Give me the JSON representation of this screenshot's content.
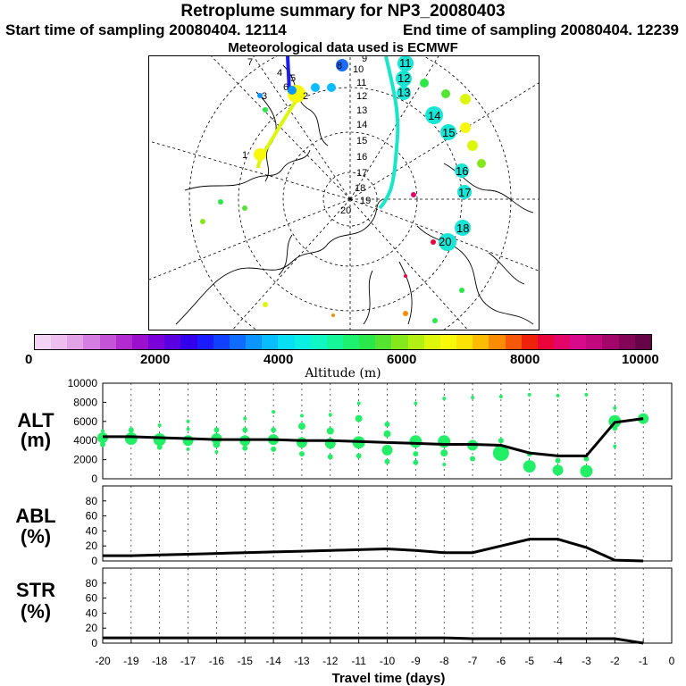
{
  "header": {
    "title": "Retroplume summary for NP3_20080403",
    "start": "Start time of sampling 20080404. 12114",
    "end": "End time of sampling 20080404. 12239",
    "met": "Meteorological data used is ECMWF"
  },
  "map": {
    "day_labels": [
      "1",
      "2",
      "3",
      "4",
      "5",
      "6",
      "7",
      "8",
      "9",
      "10",
      "11",
      "12",
      "13",
      "14",
      "15",
      "16",
      "17",
      "18",
      "19",
      "20"
    ],
    "center_labels": [
      "9",
      "10",
      "11",
      "12",
      "13",
      "14",
      "15",
      "16",
      "17",
      "18",
      "19",
      "20"
    ]
  },
  "colorbar": {
    "colors": [
      "#f3d4f3",
      "#eebfee",
      "#e2a3e6",
      "#d37ee0",
      "#c453d8",
      "#b12bd0",
      "#9a10cc",
      "#7c00d8",
      "#5a00e0",
      "#3300ee",
      "#1b1bff",
      "#1140ff",
      "#0f6cff",
      "#0c95ff",
      "#09bdfe",
      "#08def4",
      "#0befe2",
      "#11f7c4",
      "#17f59a",
      "#1ef070",
      "#2be84a",
      "#55e430",
      "#85e81c",
      "#b3ef12",
      "#dcf70b",
      "#f8f908",
      "#fde205",
      "#fcbb04",
      "#fa8c05",
      "#f45808",
      "#ee220a",
      "#e9053a",
      "#e3056a",
      "#d80a8c",
      "#c2087d",
      "#a3066b",
      "#830558",
      "#650447"
    ],
    "tick_labels": [
      "0",
      "2000",
      "4000",
      "6000",
      "8000",
      "10000"
    ],
    "title": "Altitude (m)"
  },
  "chart_data": [
    {
      "type": "line",
      "panel": "ALT",
      "ylabel_lines": [
        "ALT",
        "(m)"
      ],
      "ylim": [
        0,
        10000
      ],
      "yticks": [
        "0",
        "2000",
        "4000",
        "6000",
        "8000",
        "10000"
      ],
      "xlim": [
        -20,
        0
      ],
      "x": [
        -20,
        -19,
        -18,
        -17,
        -16,
        -15,
        -14,
        -13,
        -12,
        -11,
        -10,
        -9,
        -8,
        -7,
        -6,
        -5,
        -4,
        -3,
        -2,
        -1
      ],
      "series": [
        {
          "name": "mean altitude",
          "values": [
            4400,
            4400,
            4300,
            4200,
            4100,
            4100,
            4100,
            4000,
            4000,
            3900,
            3800,
            3700,
            3600,
            3600,
            3500,
            2700,
            2400,
            2400,
            5900,
            6300
          ]
        }
      ],
      "scatter": [
        {
          "x": -20,
          "y": 4300,
          "r": 6
        },
        {
          "x": -20,
          "y": 3600,
          "r": 3
        },
        {
          "x": -20,
          "y": 5000,
          "r": 2
        },
        {
          "x": -19,
          "y": 4200,
          "r": 7
        },
        {
          "x": -19,
          "y": 5100,
          "r": 3
        },
        {
          "x": -18,
          "y": 4100,
          "r": 7
        },
        {
          "x": -18,
          "y": 3300,
          "r": 3
        },
        {
          "x": -18,
          "y": 5600,
          "r": 2
        },
        {
          "x": -17,
          "y": 4000,
          "r": 6
        },
        {
          "x": -17,
          "y": 5200,
          "r": 2
        },
        {
          "x": -17,
          "y": 3100,
          "r": 2
        },
        {
          "x": -17,
          "y": 6000,
          "r": 2
        },
        {
          "x": -16,
          "y": 4200,
          "r": 6
        },
        {
          "x": -16,
          "y": 3600,
          "r": 4
        },
        {
          "x": -16,
          "y": 5100,
          "r": 3
        },
        {
          "x": -16,
          "y": 2800,
          "r": 2
        },
        {
          "x": -15,
          "y": 4000,
          "r": 6
        },
        {
          "x": -15,
          "y": 5100,
          "r": 3
        },
        {
          "x": -15,
          "y": 3200,
          "r": 3
        },
        {
          "x": -15,
          "y": 6300,
          "r": 2
        },
        {
          "x": -14,
          "y": 4100,
          "r": 6
        },
        {
          "x": -14,
          "y": 5100,
          "r": 3
        },
        {
          "x": -14,
          "y": 3100,
          "r": 3
        },
        {
          "x": -14,
          "y": 7000,
          "r": 2
        },
        {
          "x": -13,
          "y": 3800,
          "r": 6
        },
        {
          "x": -13,
          "y": 5500,
          "r": 4
        },
        {
          "x": -13,
          "y": 6600,
          "r": 2
        },
        {
          "x": -13,
          "y": 2600,
          "r": 3
        },
        {
          "x": -12,
          "y": 3700,
          "r": 6
        },
        {
          "x": -12,
          "y": 5000,
          "r": 4
        },
        {
          "x": -12,
          "y": 2300,
          "r": 3
        },
        {
          "x": -12,
          "y": 6700,
          "r": 2
        },
        {
          "x": -11,
          "y": 3800,
          "r": 7
        },
        {
          "x": -11,
          "y": 6300,
          "r": 4
        },
        {
          "x": -11,
          "y": 2400,
          "r": 3
        },
        {
          "x": -11,
          "y": 7900,
          "r": 2
        },
        {
          "x": -10,
          "y": 3000,
          "r": 6
        },
        {
          "x": -10,
          "y": 4700,
          "r": 4
        },
        {
          "x": -10,
          "y": 5700,
          "r": 3
        },
        {
          "x": -10,
          "y": 1800,
          "r": 3
        },
        {
          "x": -9,
          "y": 3900,
          "r": 7
        },
        {
          "x": -9,
          "y": 7900,
          "r": 2
        },
        {
          "x": -9,
          "y": 1700,
          "r": 3
        },
        {
          "x": -9,
          "y": 2600,
          "r": 3
        },
        {
          "x": -8,
          "y": 3900,
          "r": 7
        },
        {
          "x": -8,
          "y": 8400,
          "r": 2
        },
        {
          "x": -8,
          "y": 2700,
          "r": 4
        },
        {
          "x": -8,
          "y": 1500,
          "r": 2
        },
        {
          "x": -7,
          "y": 3500,
          "r": 6
        },
        {
          "x": -7,
          "y": 8500,
          "r": 2
        },
        {
          "x": -7,
          "y": 2100,
          "r": 3
        },
        {
          "x": -6,
          "y": 2700,
          "r": 9
        },
        {
          "x": -6,
          "y": 8600,
          "r": 2
        },
        {
          "x": -6,
          "y": 4000,
          "r": 3
        },
        {
          "x": -5,
          "y": 1300,
          "r": 7
        },
        {
          "x": -5,
          "y": 8800,
          "r": 2
        },
        {
          "x": -5,
          "y": 2600,
          "r": 3
        },
        {
          "x": -4,
          "y": 900,
          "r": 6
        },
        {
          "x": -4,
          "y": 8700,
          "r": 2
        },
        {
          "x": -4,
          "y": 1900,
          "r": 3
        },
        {
          "x": -3,
          "y": 800,
          "r": 7
        },
        {
          "x": -3,
          "y": 8800,
          "r": 2
        },
        {
          "x": -3,
          "y": 2100,
          "r": 3
        },
        {
          "x": -2,
          "y": 6000,
          "r": 7
        },
        {
          "x": -2,
          "y": 5300,
          "r": 3
        },
        {
          "x": -2,
          "y": 7400,
          "r": 2
        },
        {
          "x": -2,
          "y": 3400,
          "r": 2
        },
        {
          "x": -1,
          "y": 6300,
          "r": 6
        }
      ]
    },
    {
      "type": "line",
      "panel": "ABL",
      "ylabel_lines": [
        "ABL",
        "(%)"
      ],
      "ylim": [
        0,
        100
      ],
      "yticks": [
        "0",
        "20",
        "40",
        "60",
        "80"
      ],
      "xlim": [
        -20,
        0
      ],
      "x": [
        -20,
        -19,
        -18,
        -17,
        -16,
        -15,
        -14,
        -13,
        -12,
        -11,
        -10,
        -9,
        -8,
        -7,
        -6,
        -5,
        -4,
        -3,
        -2,
        -1
      ],
      "series": [
        {
          "name": "ABL fraction",
          "values": [
            7,
            7,
            8,
            9,
            10,
            11,
            12,
            13,
            14,
            15,
            16,
            14,
            11,
            11,
            20,
            29,
            29,
            18,
            1,
            0
          ]
        }
      ]
    },
    {
      "type": "line",
      "panel": "STR",
      "ylabel_lines": [
        "STR",
        "(%)"
      ],
      "ylim": [
        0,
        100
      ],
      "yticks": [
        "0",
        "20",
        "40",
        "60",
        "80"
      ],
      "xlim": [
        -20,
        0
      ],
      "x": [
        -20,
        -19,
        -18,
        -17,
        -16,
        -15,
        -14,
        -13,
        -12,
        -11,
        -10,
        -9,
        -8,
        -7,
        -6,
        -5,
        -4,
        -3,
        -2,
        -1
      ],
      "series": [
        {
          "name": "stratospheric fraction",
          "values": [
            7,
            7,
            7,
            7,
            7,
            7,
            7,
            7,
            7,
            7,
            7,
            7,
            7,
            6,
            6,
            6,
            6,
            6,
            6,
            0
          ]
        }
      ],
      "xlabel": "Travel time (days)",
      "xticks": [
        "-20",
        "-19",
        "-18",
        "-17",
        "-16",
        "-15",
        "-14",
        "-13",
        "-12",
        "-11",
        "-10",
        "-9",
        "-8",
        "-7",
        "-6",
        "-5",
        "-4",
        "-3",
        "-2",
        "-1",
        "0"
      ]
    }
  ]
}
